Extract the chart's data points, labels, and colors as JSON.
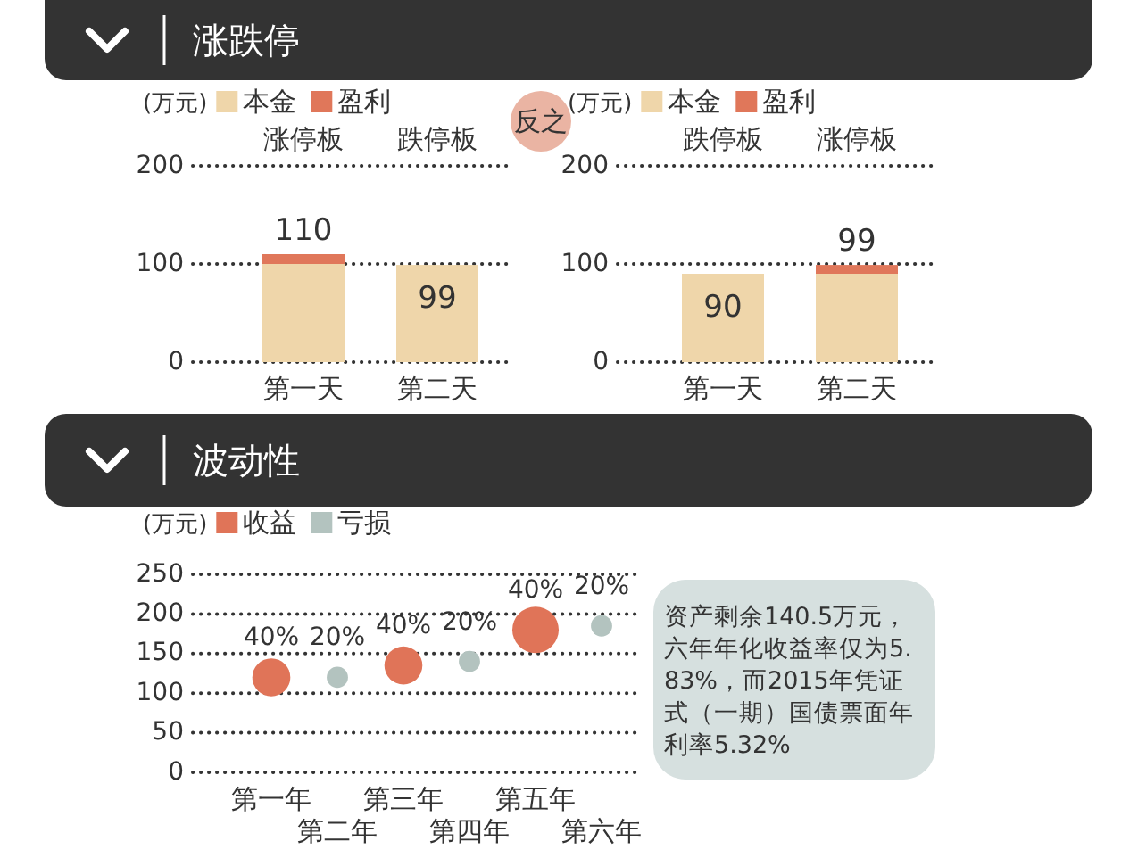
{
  "chart_data": [
    {
      "type": "bar",
      "title": "涨跌停",
      "ylabel": "(万元)",
      "categories": [
        "第一天",
        "第二天"
      ],
      "stacked": true,
      "series": [
        {
          "name": "本金",
          "color": "#efd6aa",
          "values": [
            100,
            99
          ]
        },
        {
          "name": "盈利",
          "color": "#e0775a",
          "values": [
            10,
            0
          ]
        }
      ],
      "totals": [
        "110",
        "99"
      ],
      "ylim": [
        0,
        200
      ],
      "yticks": [
        0,
        100,
        200
      ],
      "grid": "y",
      "legend": "top left",
      "annotations": [
        "涨停板",
        "跌停板"
      ]
    },
    {
      "type": "bar",
      "ylabel": "(万元)",
      "categories": [
        "第一天",
        "第二天"
      ],
      "stacked": true,
      "series": [
        {
          "name": "本金",
          "color": "#efd6aa",
          "values": [
            90,
            90
          ]
        },
        {
          "name": "盈利",
          "color": "#e0775a",
          "values": [
            0,
            9
          ]
        }
      ],
      "totals": [
        "90",
        "99"
      ],
      "ylim": [
        0,
        200
      ],
      "yticks": [
        0,
        100,
        200
      ],
      "grid": "y",
      "legend": "top left",
      "annotations": [
        "反之",
        "跌停板",
        "涨停板"
      ]
    },
    {
      "type": "bubble",
      "title": "波动性",
      "ylabel": "(万元)",
      "categories": [
        "第一年",
        "第二年",
        "第三年",
        "第四年",
        "第五年",
        "第六年"
      ],
      "series": [
        {
          "name": "收益",
          "color": "#e07458",
          "values": [
            120,
            null,
            135,
            null,
            180,
            null
          ],
          "sizes": [
            0.67,
            null,
            0.67,
            null,
            1,
            null
          ]
        },
        {
          "name": "亏损",
          "color": "#b3c3bf",
          "values": [
            null,
            120,
            null,
            140,
            null,
            185
          ],
          "sizes": [
            null,
            0.21,
            null,
            0.21,
            null,
            0.21
          ]
        }
      ],
      "ylim": [
        0,
        250
      ],
      "yticks": [
        0,
        50,
        100,
        150,
        200,
        250
      ],
      "grid": "y",
      "legend": "top left",
      "annotations": [
        {
          "text": "40%",
          "x": "第一年",
          "y": 120
        },
        {
          "text": "20%",
          "x": "第二年",
          "y": 120
        },
        {
          "text": "40%",
          "x": "第三年",
          "y": 135
        },
        {
          "text": "20%",
          "x": "第四年",
          "y": 140
        },
        {
          "text": "40%",
          "x": "第五年",
          "y": 180
        },
        {
          "text": "20%",
          "x": "第六年",
          "y": 185
        },
        "资产剩余140.5万元，六年年化收益率仅为5.83%，而2015年凭证式（一期）国债票面年利率5.32%"
      ]
    }
  ]
}
